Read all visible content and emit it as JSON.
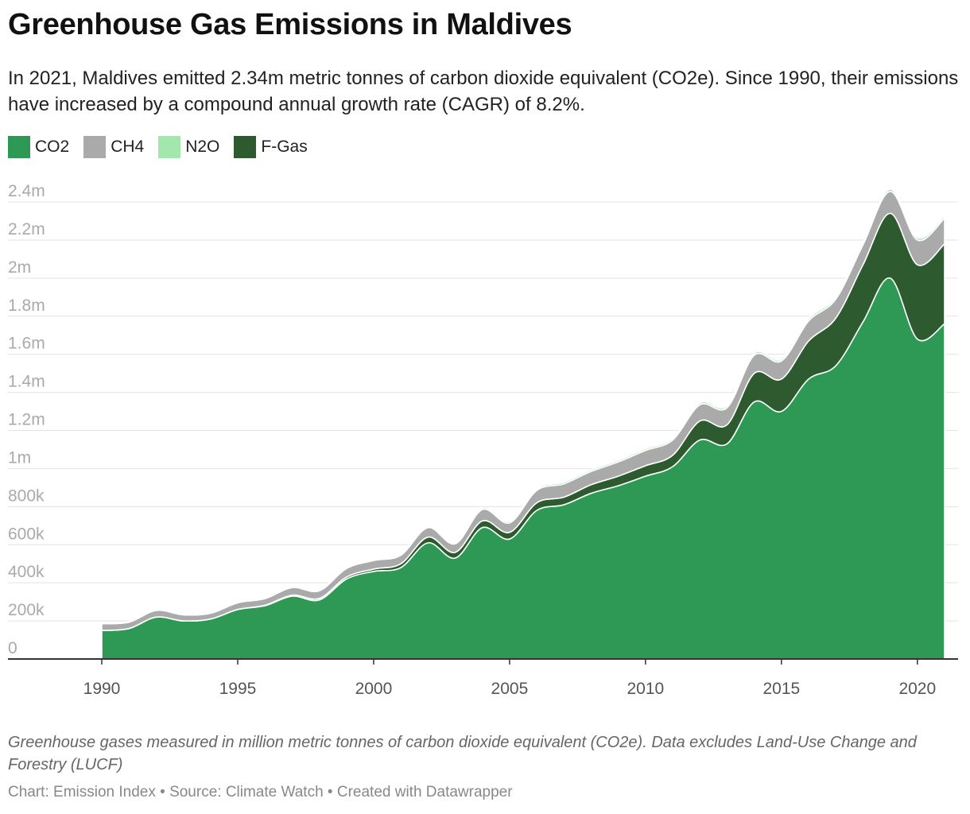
{
  "title": "Greenhouse Gas Emissions in Maldives",
  "subtitle": "In 2021, Maldives emitted 2.34m metric tonnes of carbon dioxide equivalent (CO2e). Since 1990, their emissions have increased by a compound annual growth rate (CAGR) of 8.2%.",
  "notes": "Greenhouse gases measured in million metric tonnes of carbon dioxide equivalent (CO2e). Data excludes Land-Use Change and Forestry (LUCF)",
  "byline": "Chart: Emission Index • Source: Climate Watch • Created with Datawrapper",
  "legend": [
    {
      "label": "CO2",
      "color": "#2e9955"
    },
    {
      "label": "CH4",
      "color": "#aaaaaa"
    },
    {
      "label": "N2O",
      "color": "#a2e8ac"
    },
    {
      "label": "F-Gas",
      "color": "#2d5a2e"
    }
  ],
  "chart_data": {
    "type": "area",
    "stacked": true,
    "x": [
      1990,
      1991,
      1992,
      1993,
      1994,
      1995,
      1996,
      1997,
      1998,
      1999,
      2000,
      2001,
      2002,
      2003,
      2004,
      2005,
      2006,
      2007,
      2008,
      2009,
      2010,
      2011,
      2012,
      2013,
      2014,
      2015,
      2016,
      2017,
      2018,
      2019,
      2020,
      2021
    ],
    "series": [
      {
        "name": "CO2",
        "color": "#2e9955",
        "values": [
          150000,
          160000,
          220000,
          200000,
          210000,
          260000,
          280000,
          330000,
          310000,
          420000,
          460000,
          480000,
          610000,
          530000,
          690000,
          630000,
          780000,
          810000,
          870000,
          910000,
          960000,
          1010000,
          1150000,
          1130000,
          1350000,
          1300000,
          1470000,
          1540000,
          1770000,
          2000000,
          1680000,
          1760000
        ]
      },
      {
        "name": "CH4",
        "color": "#aaaaaa",
        "values": [
          35000,
          33000,
          35000,
          32000,
          30000,
          35000,
          35000,
          40000,
          40000,
          45000,
          45000,
          45000,
          50000,
          45000,
          60000,
          50000,
          65000,
          70000,
          70000,
          75000,
          80000,
          80000,
          85000,
          90000,
          95000,
          95000,
          105000,
          100000,
          105000,
          115000,
          130000,
          135000
        ]
      },
      {
        "name": "N2O",
        "color": "#a2e8ac",
        "values": [
          3000,
          3000,
          4000,
          4000,
          4000,
          5000,
          5000,
          5000,
          5000,
          6000,
          6000,
          6000,
          7000,
          7000,
          8000,
          8000,
          8000,
          9000,
          9000,
          9000,
          9000,
          9000,
          10000,
          10000,
          10000,
          10000,
          11000,
          11000,
          11000,
          12000,
          12000,
          12000
        ]
      },
      {
        "name": "F-Gas",
        "color": "#2d5a2e",
        "values": [
          0,
          0,
          0,
          0,
          0,
          0,
          2000,
          5000,
          8000,
          10000,
          12000,
          20000,
          30000,
          30000,
          35000,
          35000,
          40000,
          40000,
          45000,
          50000,
          55000,
          60000,
          100000,
          100000,
          150000,
          170000,
          200000,
          250000,
          300000,
          340000,
          390000,
          420000
        ]
      }
    ],
    "stack_order": [
      "CO2",
      "F-Gas",
      "CH4",
      "N2O"
    ],
    "ylim": [
      0,
      2400000
    ],
    "y_ticks": [
      {
        "value": 0,
        "label": "0"
      },
      {
        "value": 200000,
        "label": "200k"
      },
      {
        "value": 400000,
        "label": "400k"
      },
      {
        "value": 600000,
        "label": "600k"
      },
      {
        "value": 800000,
        "label": "800k"
      },
      {
        "value": 1000000,
        "label": "1m"
      },
      {
        "value": 1200000,
        "label": "1.2m"
      },
      {
        "value": 1400000,
        "label": "1.4m"
      },
      {
        "value": 1600000,
        "label": "1.6m"
      },
      {
        "value": 1800000,
        "label": "1.8m"
      },
      {
        "value": 2000000,
        "label": "2m"
      },
      {
        "value": 2200000,
        "label": "2.2m"
      },
      {
        "value": 2400000,
        "label": "2.4m"
      }
    ],
    "x_ticks": [
      {
        "value": 1990,
        "label": "1990"
      },
      {
        "value": 1995,
        "label": "1995"
      },
      {
        "value": 2000,
        "label": "2000"
      },
      {
        "value": 2005,
        "label": "2005"
      },
      {
        "value": 2010,
        "label": "2010"
      },
      {
        "value": 2015,
        "label": "2015"
      },
      {
        "value": 2020,
        "label": "2020"
      }
    ],
    "grid": true,
    "legend_position": "top-left"
  }
}
